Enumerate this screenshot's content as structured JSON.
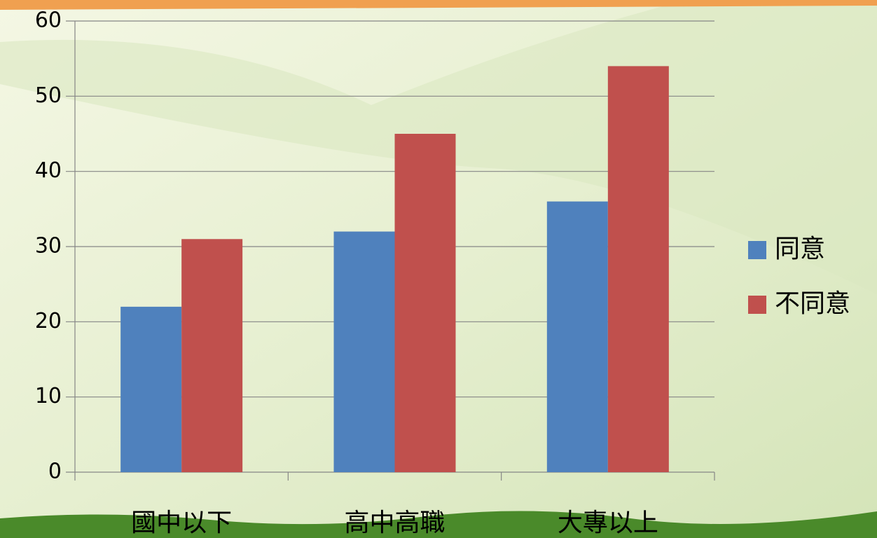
{
  "chart_data": {
    "type": "bar",
    "categories": [
      "國中以下",
      "高中高職",
      "大專以上"
    ],
    "series": [
      {
        "name": "同意",
        "color": "#4f81bd",
        "values": [
          22,
          32,
          36
        ]
      },
      {
        "name": "不同意",
        "color": "#c0504d",
        "values": [
          31,
          45,
          54
        ]
      }
    ],
    "ylim": [
      0,
      60
    ],
    "yticks": [
      0,
      10,
      20,
      30,
      40,
      50,
      60
    ],
    "grid": true,
    "legend": "right"
  }
}
